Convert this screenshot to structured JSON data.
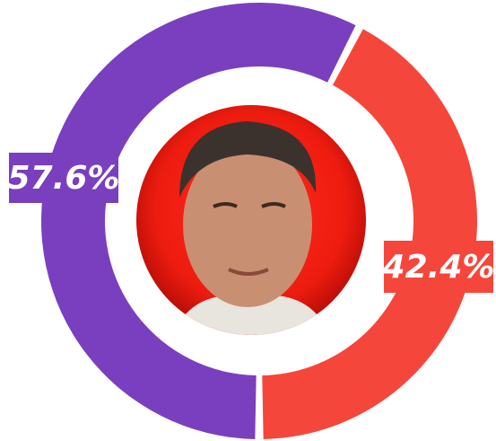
{
  "chart_data": {
    "type": "donut",
    "categories": [
      null,
      null
    ],
    "values": [
      57.6,
      42.4
    ],
    "value_labels": [
      "57.6%",
      "42.4%"
    ],
    "colors": [
      "#7a3fbe",
      "#f5463b"
    ]
  }
}
